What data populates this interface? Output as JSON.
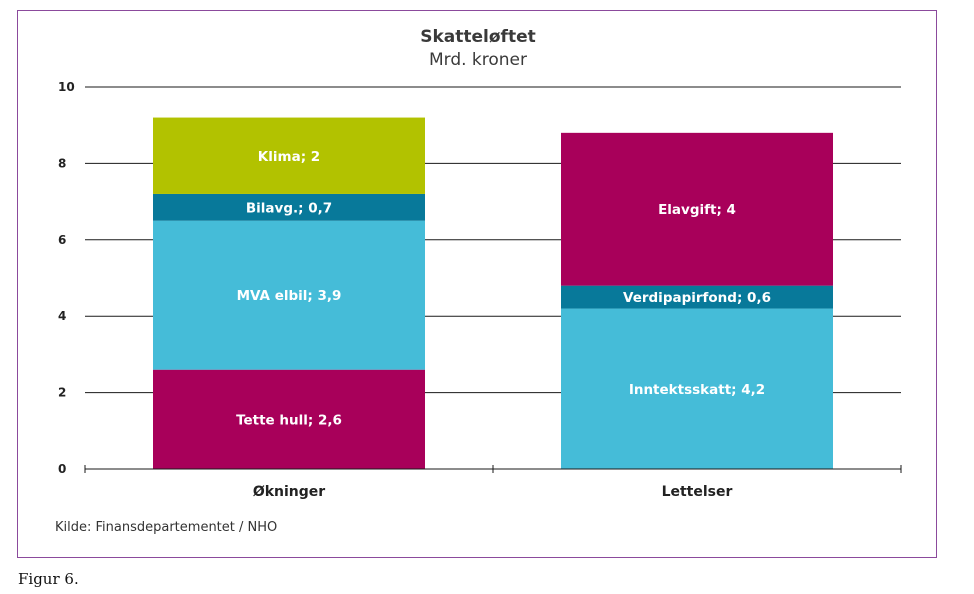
{
  "chart_data": {
    "type": "bar",
    "stacked": true,
    "title": "Skatteløftet",
    "subtitle": "Mrd. kroner",
    "categories": [
      "Økninger",
      "Lettelser"
    ],
    "ylim": [
      0,
      10
    ],
    "yticks": [
      0,
      2,
      4,
      6,
      8,
      10
    ],
    "grid": true,
    "bars": [
      {
        "category": "Økninger",
        "segments": [
          {
            "label": "Tette hull; 2,6",
            "value": 2.6,
            "color": "#a8005a"
          },
          {
            "label": "MVA elbil; 3,9",
            "value": 3.9,
            "color": "#45bcd8"
          },
          {
            "label": "Bilavg.; 0,7",
            "value": 0.7,
            "color": "#08799a"
          },
          {
            "label": "Klima; 2",
            "value": 2,
            "color": "#b2c200"
          }
        ]
      },
      {
        "category": "Lettelser",
        "segments": [
          {
            "label": "Inntektsskatt; 4,2",
            "value": 4.2,
            "color": "#45bcd8"
          },
          {
            "label": "Verdipapirfond; 0,6",
            "value": 0.6,
            "color": "#08799a"
          },
          {
            "label": "Elavgift; 4",
            "value": 4,
            "color": "#a8005a"
          }
        ]
      }
    ],
    "source": "Kilde: Finansdepartementet / NHO"
  },
  "caption": "Figur 6."
}
